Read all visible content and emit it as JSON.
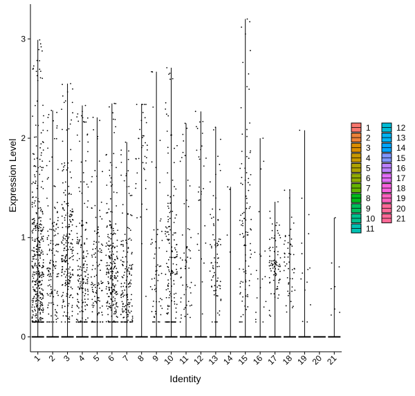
{
  "chart_data": {
    "type": "violin",
    "title": "",
    "xlabel": "Identity",
    "ylabel": "Expression Level",
    "ylim": [
      -0.15,
      3.35
    ],
    "yticks": [
      0,
      1,
      2,
      3
    ],
    "grid": false,
    "legend_placement": "right",
    "categories": [
      "1",
      "2",
      "3",
      "4",
      "5",
      "6",
      "7",
      "8",
      "9",
      "10",
      "11",
      "12",
      "13",
      "14",
      "15",
      "16",
      "17",
      "18",
      "19",
      "20",
      "21"
    ],
    "max_values": [
      2.99,
      2.28,
      2.55,
      2.33,
      2.21,
      2.35,
      1.96,
      2.34,
      2.67,
      2.71,
      2.15,
      2.27,
      2.11,
      1.51,
      3.2,
      2.0,
      1.36,
      1.48,
      2.08,
      0.0,
      1.2
    ],
    "nonzero_counts": [
      420,
      140,
      220,
      180,
      120,
      240,
      160,
      40,
      60,
      160,
      60,
      30,
      80,
      4,
      100,
      20,
      80,
      50,
      15,
      0,
      8
    ],
    "median_nonzero": [
      0.62,
      0.65,
      0.85,
      0.55,
      0.5,
      0.58,
      0.45,
      1.9,
      0.55,
      0.6,
      0.65,
      1.7,
      0.7,
      0.85,
      0.95,
      0.55,
      0.72,
      0.68,
      0.45,
      0.0,
      0.45
    ],
    "legend": [
      {
        "label": "1",
        "color": "#F8766D"
      },
      {
        "label": "2",
        "color": "#EC8239"
      },
      {
        "label": "3",
        "color": "#DB8E00"
      },
      {
        "label": "4",
        "color": "#C79800"
      },
      {
        "label": "5",
        "color": "#AEA200"
      },
      {
        "label": "6",
        "color": "#8FAA00"
      },
      {
        "label": "7",
        "color": "#64B200"
      },
      {
        "label": "8",
        "color": "#00B81B"
      },
      {
        "label": "9",
        "color": "#00BD5C"
      },
      {
        "label": "10",
        "color": "#00C08D"
      },
      {
        "label": "11",
        "color": "#00C1B2"
      },
      {
        "label": "12",
        "color": "#00BCD6"
      },
      {
        "label": "13",
        "color": "#00B3F2"
      },
      {
        "label": "14",
        "color": "#00A6FF"
      },
      {
        "label": "15",
        "color": "#7F96FF"
      },
      {
        "label": "16",
        "color": "#BC81FF"
      },
      {
        "label": "17",
        "color": "#E26EF7"
      },
      {
        "label": "18",
        "color": "#F863DF"
      },
      {
        "label": "19",
        "color": "#FF62BF"
      },
      {
        "label": "20",
        "color": "#FF6A9A"
      },
      {
        "label": "21",
        "color": "#FF6A98"
      }
    ]
  }
}
